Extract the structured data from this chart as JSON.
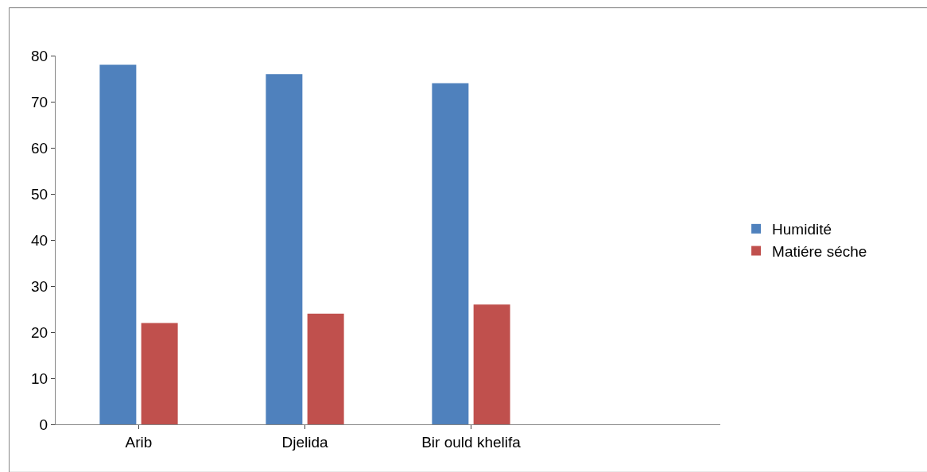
{
  "chart_data": {
    "type": "bar",
    "categories": [
      "Arib",
      "Djelida",
      "Bir ould khelifa",
      null
    ],
    "series": [
      {
        "name": "Humidité",
        "color": "#4f81bd",
        "values": [
          78,
          76,
          74,
          null
        ]
      },
      {
        "name": "Matiére séche",
        "color": "#c0504d",
        "values": [
          22,
          24,
          26,
          null
        ]
      }
    ],
    "ylim": [
      0,
      80
    ],
    "yticks": [
      0,
      10,
      20,
      30,
      40,
      50,
      60,
      70,
      80
    ],
    "legend": "right"
  }
}
